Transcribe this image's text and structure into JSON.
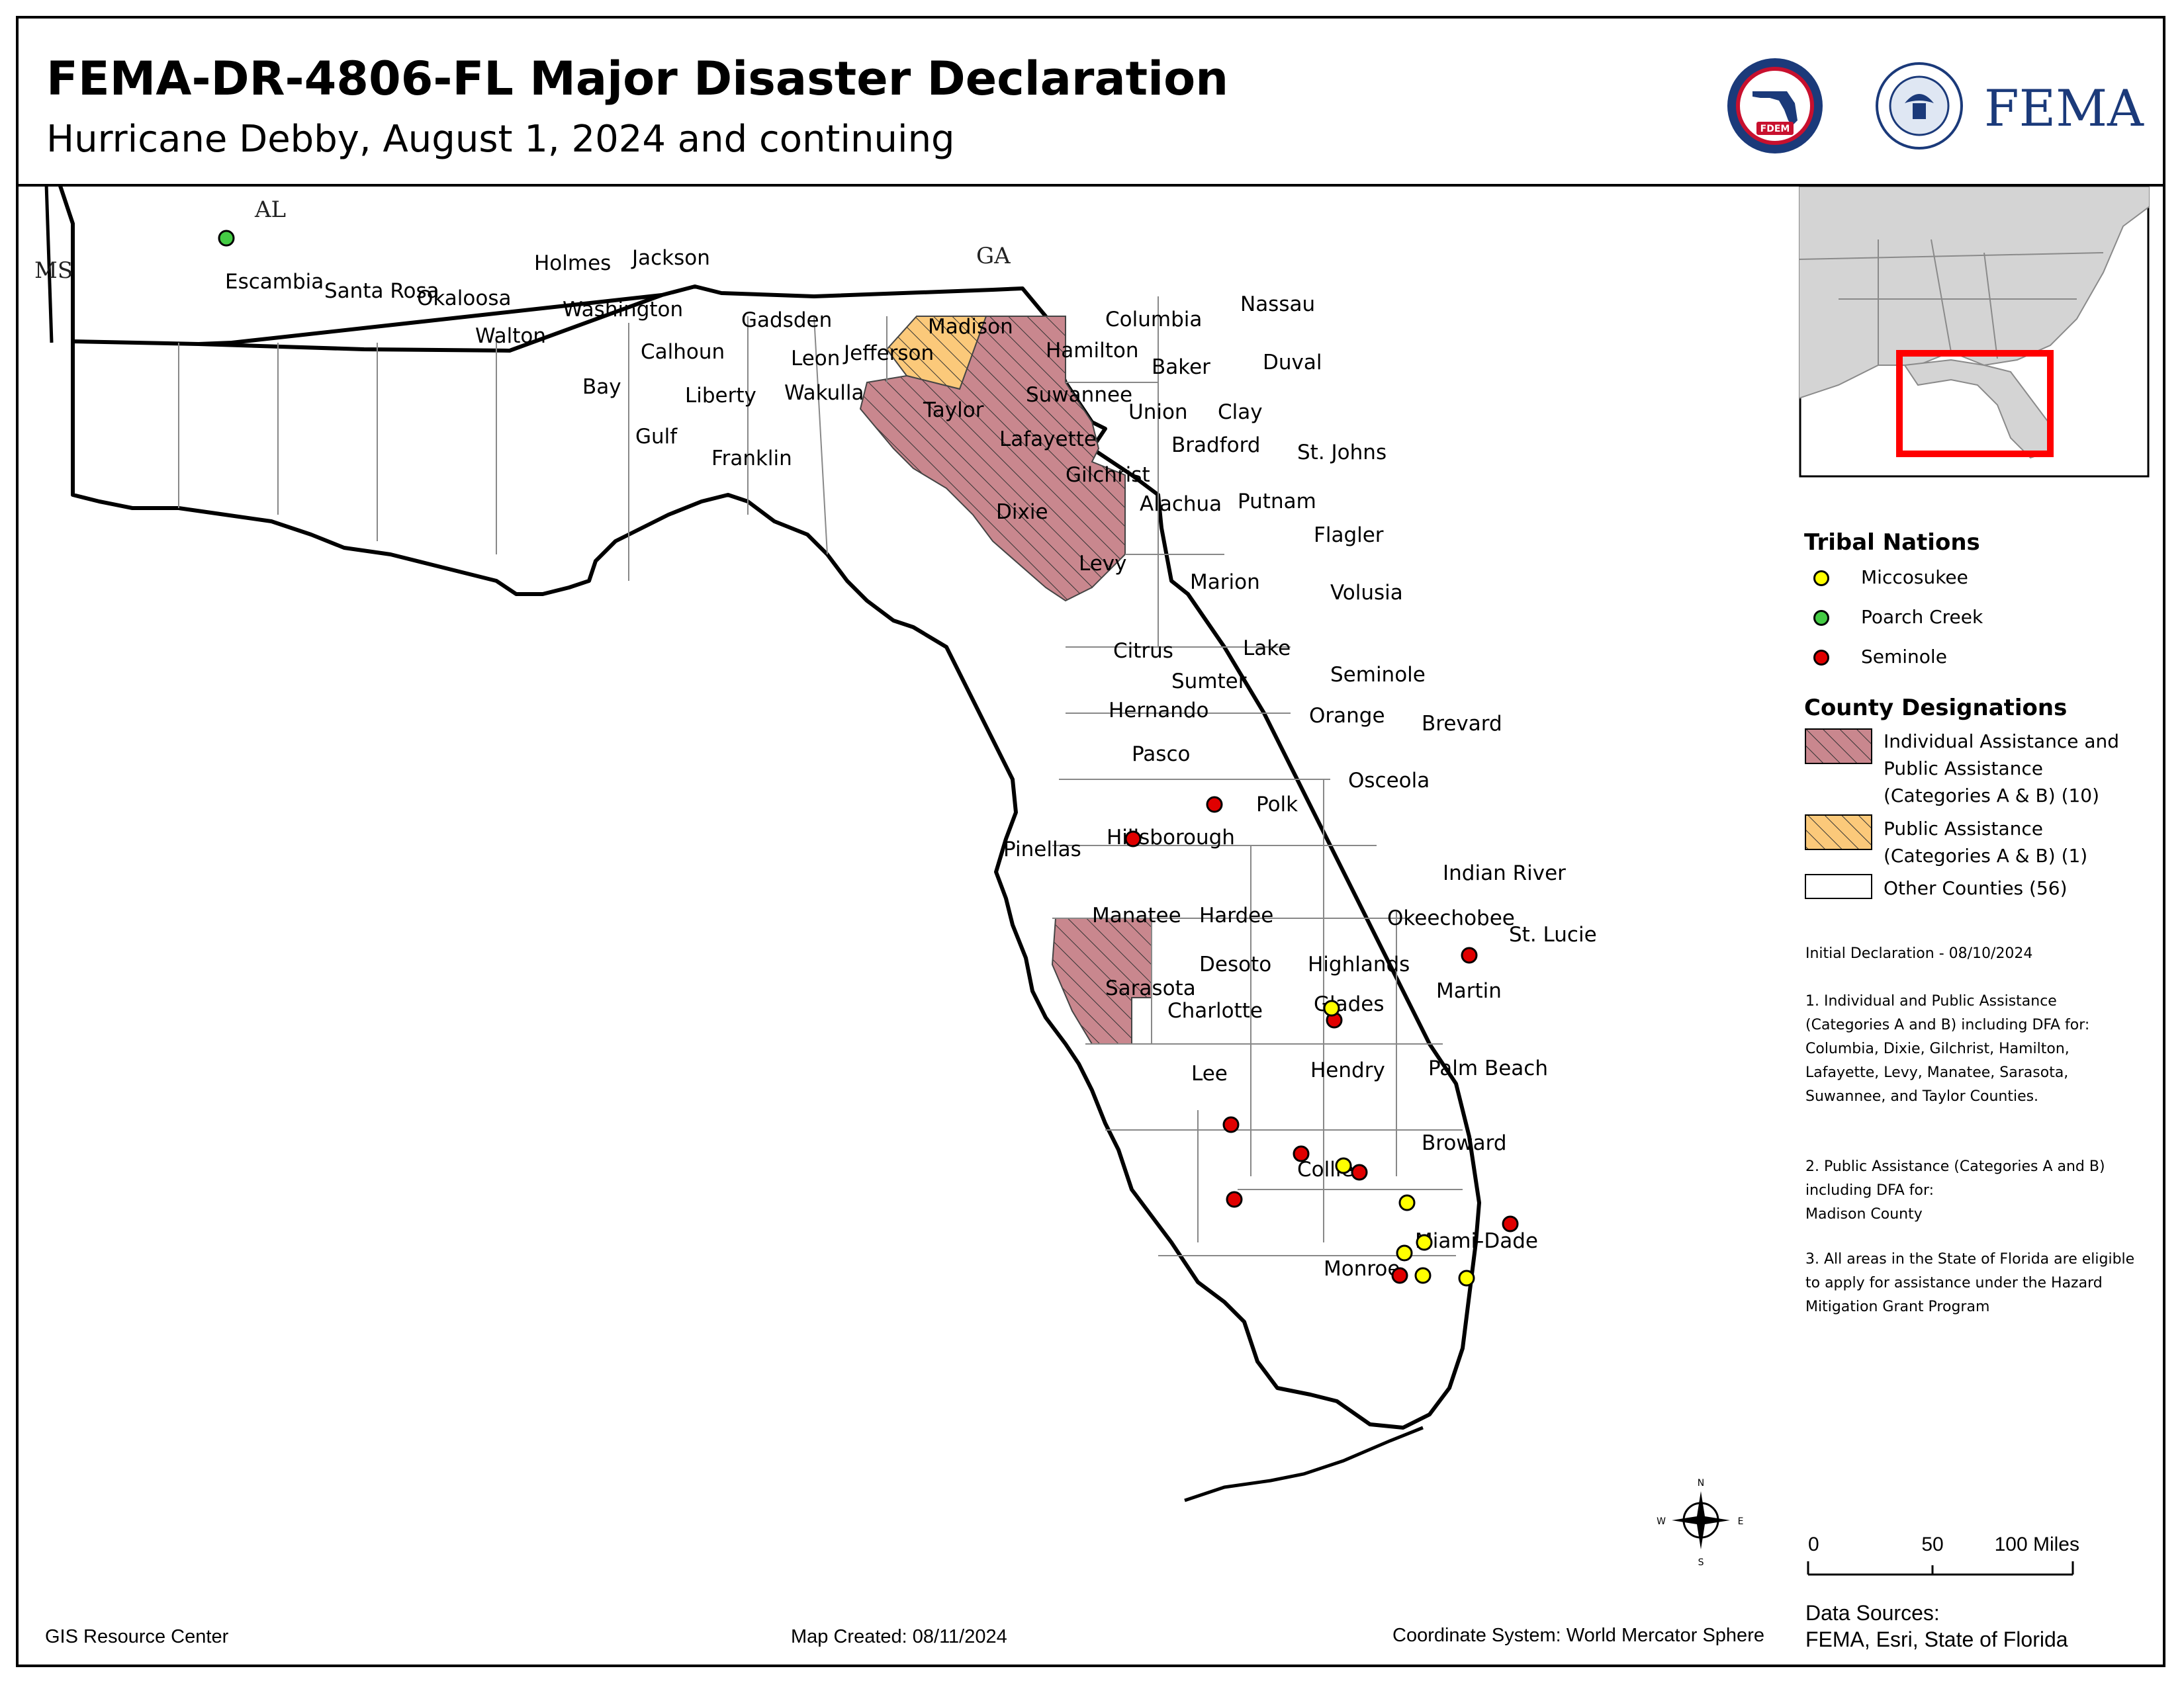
{
  "header": {
    "title": "FEMA-DR-4806-FL Major Disaster Declaration",
    "subtitle": "Hurricane Debby, August 1, 2024 and continuing"
  },
  "logos": {
    "fdem_text": "FDEM",
    "fema_text": "FEMA"
  },
  "map": {
    "state_labels": [
      "AL",
      "MS",
      "GA"
    ],
    "counties": [
      {
        "name": "Escambia",
        "designation": "none"
      },
      {
        "name": "Santa Rosa",
        "designation": "none"
      },
      {
        "name": "Okaloosa",
        "designation": "none"
      },
      {
        "name": "Walton",
        "designation": "none"
      },
      {
        "name": "Holmes",
        "designation": "none"
      },
      {
        "name": "Washington",
        "designation": "none"
      },
      {
        "name": "Jackson",
        "designation": "none"
      },
      {
        "name": "Bay",
        "designation": "none"
      },
      {
        "name": "Calhoun",
        "designation": "none"
      },
      {
        "name": "Gulf",
        "designation": "none"
      },
      {
        "name": "Liberty",
        "designation": "none"
      },
      {
        "name": "Franklin",
        "designation": "none"
      },
      {
        "name": "Gadsden",
        "designation": "none"
      },
      {
        "name": "Leon",
        "designation": "none"
      },
      {
        "name": "Wakulla",
        "designation": "none"
      },
      {
        "name": "Jefferson",
        "designation": "none"
      },
      {
        "name": "Madison",
        "designation": "pa"
      },
      {
        "name": "Taylor",
        "designation": "ia_pa"
      },
      {
        "name": "Hamilton",
        "designation": "ia_pa"
      },
      {
        "name": "Suwannee",
        "designation": "ia_pa"
      },
      {
        "name": "Lafayette",
        "designation": "ia_pa"
      },
      {
        "name": "Columbia",
        "designation": "ia_pa"
      },
      {
        "name": "Gilchrist",
        "designation": "ia_pa"
      },
      {
        "name": "Dixie",
        "designation": "ia_pa"
      },
      {
        "name": "Levy",
        "designation": "ia_pa"
      },
      {
        "name": "Baker",
        "designation": "none"
      },
      {
        "name": "Union",
        "designation": "none"
      },
      {
        "name": "Bradford",
        "designation": "none"
      },
      {
        "name": "Nassau",
        "designation": "none"
      },
      {
        "name": "Duval",
        "designation": "none"
      },
      {
        "name": "Clay",
        "designation": "none"
      },
      {
        "name": "St. Johns",
        "designation": "none"
      },
      {
        "name": "Alachua",
        "designation": "none"
      },
      {
        "name": "Putnam",
        "designation": "none"
      },
      {
        "name": "Flagler",
        "designation": "none"
      },
      {
        "name": "Marion",
        "designation": "none"
      },
      {
        "name": "Volusia",
        "designation": "none"
      },
      {
        "name": "Citrus",
        "designation": "none"
      },
      {
        "name": "Lake",
        "designation": "none"
      },
      {
        "name": "Sumter",
        "designation": "none"
      },
      {
        "name": "Seminole",
        "designation": "none"
      },
      {
        "name": "Hernando",
        "designation": "none"
      },
      {
        "name": "Orange",
        "designation": "none"
      },
      {
        "name": "Brevard",
        "designation": "none"
      },
      {
        "name": "Pasco",
        "designation": "none"
      },
      {
        "name": "Osceola",
        "designation": "none"
      },
      {
        "name": "Polk",
        "designation": "none"
      },
      {
        "name": "Pinellas",
        "designation": "none"
      },
      {
        "name": "Hillsborough",
        "designation": "none"
      },
      {
        "name": "Indian River",
        "designation": "none"
      },
      {
        "name": "Manatee",
        "designation": "ia_pa"
      },
      {
        "name": "Hardee",
        "designation": "none"
      },
      {
        "name": "Okeechobee",
        "designation": "none"
      },
      {
        "name": "St. Lucie",
        "designation": "none"
      },
      {
        "name": "Desoto",
        "designation": "none"
      },
      {
        "name": "Highlands",
        "designation": "none"
      },
      {
        "name": "Sarasota",
        "designation": "ia_pa"
      },
      {
        "name": "Glades",
        "designation": "none"
      },
      {
        "name": "Martin",
        "designation": "none"
      },
      {
        "name": "Charlotte",
        "designation": "none"
      },
      {
        "name": "Lee",
        "designation": "none"
      },
      {
        "name": "Hendry",
        "designation": "none"
      },
      {
        "name": "Palm Beach",
        "designation": "none"
      },
      {
        "name": "Collier",
        "designation": "none"
      },
      {
        "name": "Broward",
        "designation": "none"
      },
      {
        "name": "Miami-Dade",
        "designation": "none"
      },
      {
        "name": "Monroe",
        "designation": "none"
      }
    ],
    "compass": {
      "n": "N",
      "s": "S",
      "e": "E",
      "w": "W"
    }
  },
  "legend": {
    "tribal_heading": "Tribal Nations",
    "tribal": [
      {
        "label": "Miccosukee",
        "color": "#FFFF00"
      },
      {
        "label": "Poarch Creek",
        "color": "#44CC44"
      },
      {
        "label": "Seminole",
        "color": "#E00000"
      }
    ],
    "county_heading": "County Designations",
    "designations": [
      {
        "lines": [
          "Individual Assistance and",
          "Public Assistance",
          "(Categories A & B) (10)"
        ],
        "color": "#C9878E",
        "hatch": true
      },
      {
        "lines": [
          "Public Assistance",
          "(Categories A & B) (1)"
        ],
        "color": "#FBC97A",
        "hatch": true
      },
      {
        "lines": [
          "Other Counties (56)"
        ],
        "color": "#FFFFFF",
        "hatch": false
      }
    ]
  },
  "notes": {
    "initial": "Initial Declaration - 08/10/2024",
    "note1": [
      "1. Individual and Public Assistance",
      "(Categories A and B) including DFA for:",
      "Columbia, Dixie, Gilchrist, Hamilton,",
      "Lafayette, Levy, Manatee, Sarasota,",
      "Suwannee, and Taylor Counties."
    ],
    "note2": [
      "2. Public Assistance (Categories A and B)",
      "including DFA for:",
      "Madison County"
    ],
    "note3": [
      "3. All areas in the State of Florida are eligible",
      "to apply for assistance under the Hazard",
      "Mitigation Grant Program"
    ]
  },
  "scale_bar": {
    "ticks": [
      "0",
      "50",
      "100 Miles"
    ]
  },
  "data_sources": [
    "Data Sources:",
    "FEMA, Esri, State of Florida"
  ],
  "footer": {
    "left": "GIS Resource Center",
    "center": "Map Created: 08/11/2024",
    "right": "Coordinate System: World Mercator Sphere"
  },
  "colors": {
    "ia_pa": "#C9878E",
    "pa": "#FBC97A",
    "inset_box": "#FF0000"
  }
}
